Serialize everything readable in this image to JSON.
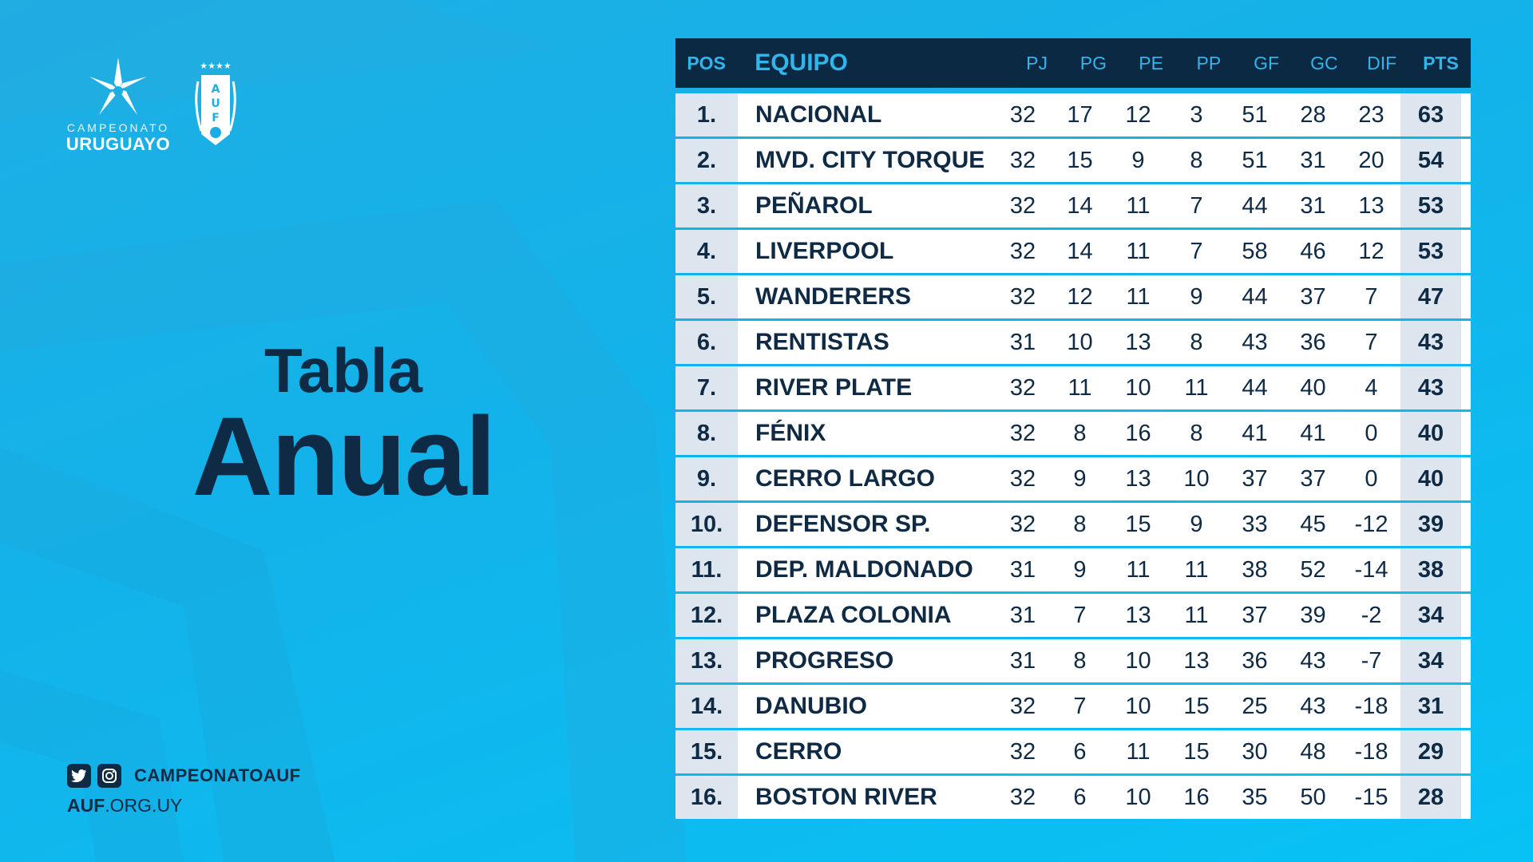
{
  "branding": {
    "league_small": "CAMPEONATO",
    "league_big": "URUGUAYO",
    "auf_letters": "AUF",
    "auf_stars": "★★★★"
  },
  "title": {
    "line1": "Tabla",
    "line2": "Anual"
  },
  "footer": {
    "handle": "CAMPEONATOAUF",
    "website_bold": "AUF",
    "website_rest": ".ORG.UY"
  },
  "icons": [
    "twitter-icon",
    "instagram-icon"
  ],
  "colors": {
    "navy": "#0c2944",
    "accent": "#2fb6ec",
    "cell_shade": "#dde5ee"
  },
  "table": {
    "headers": {
      "pos": "POS",
      "team": "EQUIPO",
      "pj": "PJ",
      "pg": "PG",
      "pe": "PE",
      "pp": "PP",
      "gf": "GF",
      "gc": "GC",
      "dif": "DIF",
      "pts": "PTS"
    },
    "rows": [
      {
        "pos": "1.",
        "team": "NACIONAL",
        "pj": "32",
        "pg": "17",
        "pe": "12",
        "pp": "3",
        "gf": "51",
        "gc": "28",
        "dif": "23",
        "pts": "63"
      },
      {
        "pos": "2.",
        "team": "MVD. CITY TORQUE",
        "pj": "32",
        "pg": "15",
        "pe": "9",
        "pp": "8",
        "gf": "51",
        "gc": "31",
        "dif": "20",
        "pts": "54"
      },
      {
        "pos": "3.",
        "team": "PEÑAROL",
        "pj": "32",
        "pg": "14",
        "pe": "11",
        "pp": "7",
        "gf": "44",
        "gc": "31",
        "dif": "13",
        "pts": "53"
      },
      {
        "pos": "4.",
        "team": "LIVERPOOL",
        "pj": "32",
        "pg": "14",
        "pe": "11",
        "pp": "7",
        "gf": "58",
        "gc": "46",
        "dif": "12",
        "pts": "53"
      },
      {
        "pos": "5.",
        "team": "WANDERERS",
        "pj": "32",
        "pg": "12",
        "pe": "11",
        "pp": "9",
        "gf": "44",
        "gc": "37",
        "dif": "7",
        "pts": "47"
      },
      {
        "pos": "6.",
        "team": "RENTISTAS",
        "pj": "31",
        "pg": "10",
        "pe": "13",
        "pp": "8",
        "gf": "43",
        "gc": "36",
        "dif": "7",
        "pts": "43"
      },
      {
        "pos": "7.",
        "team": "RIVER PLATE",
        "pj": "32",
        "pg": "11",
        "pe": "10",
        "pp": "11",
        "gf": "44",
        "gc": "40",
        "dif": "4",
        "pts": "43"
      },
      {
        "pos": "8.",
        "team": "FÉNIX",
        "pj": "32",
        "pg": "8",
        "pe": "16",
        "pp": "8",
        "gf": "41",
        "gc": "41",
        "dif": "0",
        "pts": "40"
      },
      {
        "pos": "9.",
        "team": "CERRO LARGO",
        "pj": "32",
        "pg": "9",
        "pe": "13",
        "pp": "10",
        "gf": "37",
        "gc": "37",
        "dif": "0",
        "pts": "40"
      },
      {
        "pos": "10.",
        "team": "DEFENSOR SP.",
        "pj": "32",
        "pg": "8",
        "pe": "15",
        "pp": "9",
        "gf": "33",
        "gc": "45",
        "dif": "-12",
        "pts": "39"
      },
      {
        "pos": "11.",
        "team": "DEP. MALDONADO",
        "pj": "31",
        "pg": "9",
        "pe": "11",
        "pp": "11",
        "gf": "38",
        "gc": "52",
        "dif": "-14",
        "pts": "38"
      },
      {
        "pos": "12.",
        "team": "PLAZA COLONIA",
        "pj": "31",
        "pg": "7",
        "pe": "13",
        "pp": "11",
        "gf": "37",
        "gc": "39",
        "dif": "-2",
        "pts": "34"
      },
      {
        "pos": "13.",
        "team": "PROGRESO",
        "pj": "31",
        "pg": "8",
        "pe": "10",
        "pp": "13",
        "gf": "36",
        "gc": "43",
        "dif": "-7",
        "pts": "34"
      },
      {
        "pos": "14.",
        "team": "DANUBIO",
        "pj": "32",
        "pg": "7",
        "pe": "10",
        "pp": "15",
        "gf": "25",
        "gc": "43",
        "dif": "-18",
        "pts": "31"
      },
      {
        "pos": "15.",
        "team": "CERRO",
        "pj": "32",
        "pg": "6",
        "pe": "11",
        "pp": "15",
        "gf": "30",
        "gc": "48",
        "dif": "-18",
        "pts": "29"
      },
      {
        "pos": "16.",
        "team": "BOSTON RIVER",
        "pj": "32",
        "pg": "6",
        "pe": "10",
        "pp": "16",
        "gf": "35",
        "gc": "50",
        "dif": "-15",
        "pts": "28"
      }
    ]
  }
}
